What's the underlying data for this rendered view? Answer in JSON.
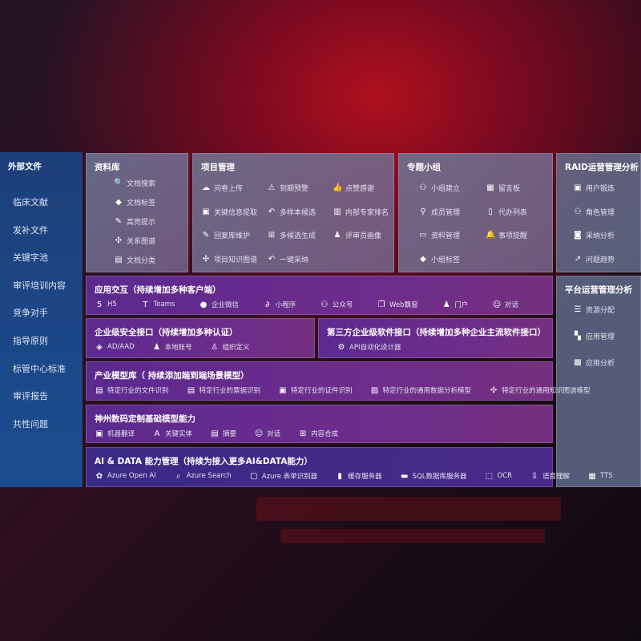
{
  "sidebar": {
    "title": "外部文件",
    "items": [
      "临床文献",
      "发补文件",
      "关键字池",
      "审评培训内容",
      "竞争对手",
      "指导原则",
      "标管中心标准",
      "审评报告",
      "共性问题"
    ]
  },
  "library": {
    "title": "资料库",
    "items": [
      {
        "icon": "doc-search-icon",
        "label": "文档搜索"
      },
      {
        "icon": "tag-icon",
        "label": "文档标签"
      },
      {
        "icon": "pen-icon",
        "label": "高亮提示"
      },
      {
        "icon": "graph-icon",
        "label": "关系图谱"
      },
      {
        "icon": "doc-classify-icon",
        "label": "文档分类"
      }
    ]
  },
  "project": {
    "title": "项目管理",
    "items": [
      {
        "icon": "cloud-upload-icon",
        "label": "问卷上传"
      },
      {
        "icon": "alarm-icon",
        "label": "到期预警"
      },
      {
        "icon": "thumbs-up-icon",
        "label": "点赞感谢"
      },
      {
        "icon": "extract-icon",
        "label": "关键信息提取"
      },
      {
        "icon": "reply-icon",
        "label": "多样本候选"
      },
      {
        "icon": "ranking-icon",
        "label": "内部专家排名"
      },
      {
        "icon": "edit-icon",
        "label": "回复库维护"
      },
      {
        "icon": "puzzle-icon",
        "label": "多候选生成"
      },
      {
        "icon": "user-icon",
        "label": "评审员画像"
      },
      {
        "icon": "graph-icon",
        "label": "项目知识图谱"
      },
      {
        "icon": "reply-icon",
        "label": "一键采纳"
      }
    ]
  },
  "group": {
    "title": "专题小组",
    "items": [
      {
        "icon": "users-icon",
        "label": "小组建立"
      },
      {
        "icon": "bbs-icon",
        "label": "留言板"
      },
      {
        "icon": "user-add-icon",
        "label": "成员管理"
      },
      {
        "icon": "clipboard-icon",
        "label": "代办列表"
      },
      {
        "icon": "folder-icon",
        "label": "资料管理"
      },
      {
        "icon": "bell-icon",
        "label": "事项提醒"
      },
      {
        "icon": "tag-icon",
        "label": "小组标签"
      }
    ]
  },
  "raid": {
    "title": "RAID运营管理分析",
    "items": [
      {
        "icon": "id-card-icon",
        "label": "用户锻炼"
      },
      {
        "icon": "users-icon",
        "label": "角色管理"
      },
      {
        "icon": "qa-icon",
        "label": "采纳分析"
      },
      {
        "icon": "trend-icon",
        "label": "问题趋势"
      }
    ]
  },
  "platform": {
    "title": "平台运营管理分析",
    "items": [
      {
        "icon": "list-icon",
        "label": "资源分配"
      },
      {
        "icon": "apps-icon",
        "label": "应用管理"
      },
      {
        "icon": "chart-icon",
        "label": "应用分析"
      }
    ]
  },
  "interaction": {
    "title": "应用交互（持续增加多种客户端）",
    "items": [
      {
        "icon": "html5-icon",
        "label": "H5"
      },
      {
        "icon": "teams-icon",
        "label": "Teams"
      },
      {
        "icon": "wechat-icon",
        "label": "企业微信"
      },
      {
        "icon": "miniprogram-icon",
        "label": "小程序"
      },
      {
        "icon": "official-account-icon",
        "label": "公众号"
      },
      {
        "icon": "window-icon",
        "label": "Web飘窗"
      },
      {
        "icon": "portal-icon",
        "label": "门户"
      },
      {
        "icon": "chat-icon",
        "label": "对话"
      }
    ]
  },
  "security": {
    "title": "企业级安全接口（持续增加多种认证）",
    "items": [
      {
        "icon": "ad-icon",
        "label": "AD/AAD"
      },
      {
        "icon": "account-icon",
        "label": "本地账号"
      },
      {
        "icon": "org-icon",
        "label": "组织定义"
      }
    ]
  },
  "thirdparty": {
    "title": "第三方企业级软件接口（持续增加多种企业主流软件接口）",
    "items": [
      {
        "icon": "gear-icon",
        "label": "API自动化设计器"
      }
    ]
  },
  "industry": {
    "title": "产业模型库（ 持续添加端到端场景模型）",
    "items": [
      {
        "icon": "file-icon",
        "label": "特定行业的文件识别"
      },
      {
        "icon": "receipt-icon",
        "label": "特定行业的票据识别"
      },
      {
        "icon": "id-card-icon",
        "label": "特定行业的证件识别"
      },
      {
        "icon": "image-icon",
        "label": "特定行业的通用数据分析模型"
      },
      {
        "icon": "graph-icon",
        "label": "特定行业的通用知识图谱模型"
      }
    ]
  },
  "base": {
    "title": "神州数码定制基础模型能力",
    "items": [
      {
        "icon": "translate-icon",
        "label": "机器翻译"
      },
      {
        "icon": "entity-icon",
        "label": "关键实体"
      },
      {
        "icon": "summary-icon",
        "label": "摘要"
      },
      {
        "icon": "chat-icon",
        "label": "对话"
      },
      {
        "icon": "puzzle-icon",
        "label": "内容合成"
      }
    ]
  },
  "aidata": {
    "title": "AI & DATA 能力管理（持续为接入更多AI&DATA能力）",
    "items": [
      {
        "icon": "openai-icon",
        "label": "Azure Open AI"
      },
      {
        "icon": "search-icon",
        "label": "Azure Search"
      },
      {
        "icon": "form-icon",
        "label": "Azure 表单识别器"
      },
      {
        "icon": "cache-icon",
        "label": "缓存服务器"
      },
      {
        "icon": "sql-icon",
        "label": "SQL数据库服务器"
      },
      {
        "icon": "ocr-icon",
        "label": "OCR"
      },
      {
        "icon": "speech-icon",
        "label": "语音理解"
      },
      {
        "icon": "tts-icon",
        "label": "TTS"
      }
    ]
  }
}
